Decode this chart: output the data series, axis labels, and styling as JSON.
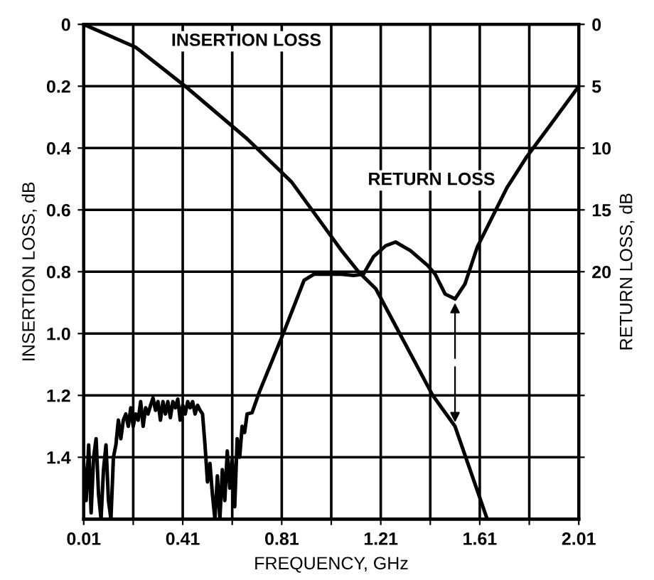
{
  "chart_data": {
    "type": "line",
    "xlabel": "FREQUENCY, GHz",
    "ylabel": "INSERTION LOSS, dB",
    "y2label": "RETURN LOSS, dB",
    "xlim": [
      0.01,
      2.01
    ],
    "xticks": [
      0.01,
      {
        "value": 0.21,
        "label": null
      },
      0.41,
      {
        "value": 0.61,
        "label": null
      },
      0.81,
      {
        "value": 1.01,
        "label": null
      },
      1.21,
      {
        "value": 1.41,
        "label": null
      },
      1.61,
      {
        "value": 1.81,
        "label": null
      },
      2.01
    ],
    "ylim": [
      1.6,
      0
    ],
    "yticks": [
      0,
      0.2,
      0.4,
      0.6,
      0.8,
      {
        "value": 1,
        "label": "1.0"
      },
      1.2,
      1.4
    ],
    "y2lim": [
      40,
      0
    ],
    "y2ticks": [
      0,
      5,
      10,
      15,
      20,
      {
        "value": 25,
        "label": null
      },
      {
        "value": 30,
        "label": null
      },
      {
        "value": 35,
        "label": null
      }
    ],
    "grid": true,
    "marker": "none",
    "line_style": "solid",
    "legend": false,
    "series": [
      {
        "name": "INSERTION LOSS",
        "color": "#000000",
        "x": [
          0.01,
          0.22,
          0.42,
          0.67,
          0.85,
          1.05,
          1.12,
          1.19,
          1.28,
          1.42,
          1.51,
          1.64
        ],
        "values": [
          0,
          0.074,
          0.2,
          0.37,
          0.51,
          0.73,
          0.8,
          0.855,
          0.99,
          1.2,
          1.3,
          1.6
        ]
      },
      {
        "name": "RETURN LOSS",
        "color": "#000000",
        "axis": "y2",
        "x": [
          0.01,
          0.02,
          0.03,
          0.04,
          0.05,
          0.06,
          0.07,
          0.08,
          0.09,
          0.1,
          0.11,
          0.12,
          0.13,
          0.14,
          0.15,
          0.16,
          0.17,
          0.18,
          0.19,
          0.2,
          0.21,
          0.22,
          0.23,
          0.24,
          0.25,
          0.26,
          0.27,
          0.28,
          0.29,
          0.3,
          0.31,
          0.32,
          0.33,
          0.34,
          0.35,
          0.36,
          0.37,
          0.38,
          0.39,
          0.4,
          0.41,
          0.42,
          0.43,
          0.44,
          0.45,
          0.46,
          0.47,
          0.48,
          0.49,
          0.5,
          0.51,
          0.52,
          0.53,
          0.54,
          0.55,
          0.56,
          0.57,
          0.58,
          0.59,
          0.6,
          0.61,
          0.62,
          0.63,
          0.64,
          0.65,
          0.66,
          0.67,
          0.69,
          0.72,
          0.82,
          0.9,
          0.94,
          1.05,
          1.1,
          1.14,
          1.18,
          1.23,
          1.27,
          1.33,
          1.4,
          1.43,
          1.47,
          1.51,
          1.55,
          1.6,
          1.63,
          1.72,
          1.8,
          1.9,
          2.01
        ],
        "values": [
          35.5,
          38.5,
          34,
          39.5,
          35,
          33.5,
          38,
          40,
          36,
          34,
          38.5,
          40,
          35,
          34,
          32,
          33.5,
          32,
          31.5,
          32.5,
          31,
          32.5,
          31.5,
          32,
          30.5,
          32.5,
          31,
          31.5,
          30.8,
          30.2,
          31.2,
          30.5,
          32,
          30.5,
          31.5,
          30.5,
          31.8,
          30.5,
          31,
          30.3,
          32,
          30.8,
          31.5,
          30.5,
          31,
          30.5,
          31.5,
          30.8,
          31.2,
          31.5,
          34,
          37,
          35.5,
          38,
          40,
          36.5,
          40,
          36,
          38.5,
          34.5,
          37.5,
          35,
          39,
          33.5,
          35,
          32.5,
          33,
          31.5,
          31.4,
          29.7,
          24.8,
          20.7,
          20.2,
          20.2,
          20.3,
          20.2,
          18.8,
          17.9,
          17.6,
          18.3,
          19.5,
          20.2,
          21.8,
          22.2,
          21,
          18,
          16.8,
          13.2,
          10.7,
          8,
          5
        ]
      }
    ]
  }
}
